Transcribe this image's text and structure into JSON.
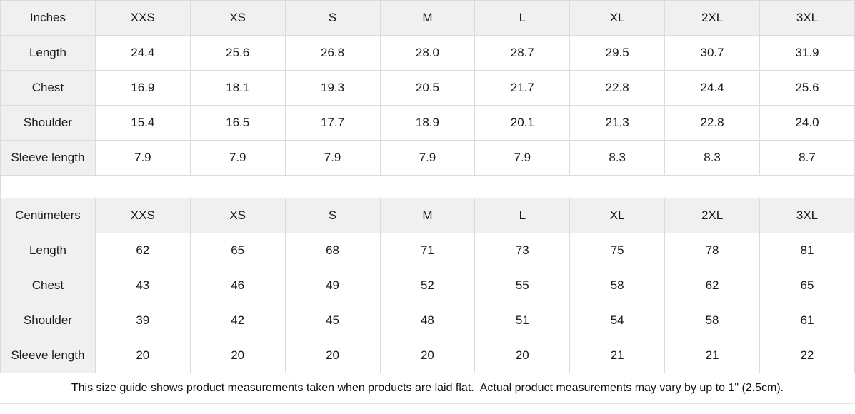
{
  "size_guide": {
    "sizes": [
      "XXS",
      "XS",
      "S",
      "M",
      "L",
      "XL",
      "2XL",
      "3XL"
    ],
    "tables": [
      {
        "unit": "Inches",
        "rows": [
          {
            "label": "Length",
            "values": [
              "24.4",
              "25.6",
              "26.8",
              "28.0",
              "28.7",
              "29.5",
              "30.7",
              "31.9"
            ]
          },
          {
            "label": "Chest",
            "values": [
              "16.9",
              "18.1",
              "19.3",
              "20.5",
              "21.7",
              "22.8",
              "24.4",
              "25.6"
            ]
          },
          {
            "label": "Shoulder",
            "values": [
              "15.4",
              "16.5",
              "17.7",
              "18.9",
              "20.1",
              "21.3",
              "22.8",
              "24.0"
            ]
          },
          {
            "label": "Sleeve length",
            "values": [
              "7.9",
              "7.9",
              "7.9",
              "7.9",
              "7.9",
              "8.3",
              "8.3",
              "8.7"
            ]
          }
        ]
      },
      {
        "unit": "Centimeters",
        "rows": [
          {
            "label": "Length",
            "values": [
              "62",
              "65",
              "68",
              "71",
              "73",
              "75",
              "78",
              "81"
            ]
          },
          {
            "label": "Chest",
            "values": [
              "43",
              "46",
              "49",
              "52",
              "55",
              "58",
              "62",
              "65"
            ]
          },
          {
            "label": "Shoulder",
            "values": [
              "39",
              "42",
              "45",
              "48",
              "51",
              "54",
              "58",
              "61"
            ]
          },
          {
            "label": "Sleeve length",
            "values": [
              "20",
              "20",
              "20",
              "20",
              "20",
              "21",
              "21",
              "22"
            ]
          }
        ]
      }
    ],
    "footnote": "This size guide shows product measurements taken when products are laid flat.  Actual product measurements may vary by up to 1\" (2.5cm)."
  },
  "colors": {
    "header_bg": "#f0f0f0",
    "border": "#dcdcdc",
    "text": "#1a1a1a"
  }
}
